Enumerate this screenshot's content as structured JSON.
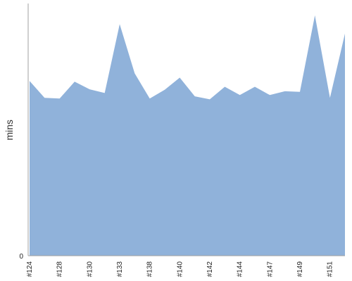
{
  "chart_data": {
    "type": "area",
    "title": "",
    "xlabel": "",
    "ylabel": "mins",
    "ylim": [
      0,
      100
    ],
    "y_tick_labels": [
      "0"
    ],
    "x_tick_labels": [
      "#124",
      "#128",
      "#130",
      "#133",
      "#138",
      "#140",
      "#142",
      "#144",
      "#147",
      "#149",
      "#151"
    ],
    "x_tick_build_index": [
      0,
      2,
      4,
      6,
      8,
      10,
      12,
      14,
      16,
      18,
      20
    ],
    "grid": false,
    "legend": "none",
    "fill_color": "#90b2da",
    "series": [
      {
        "values": [
          69.3,
          62.6,
          62.3,
          69.0,
          66.0,
          64.5,
          91.8,
          72.3,
          62.3,
          65.8,
          70.6,
          63.2,
          62.0,
          67.0,
          63.7,
          67.0,
          63.7,
          65.2,
          65.0,
          95.3,
          62.6,
          88.1
        ]
      }
    ]
  }
}
